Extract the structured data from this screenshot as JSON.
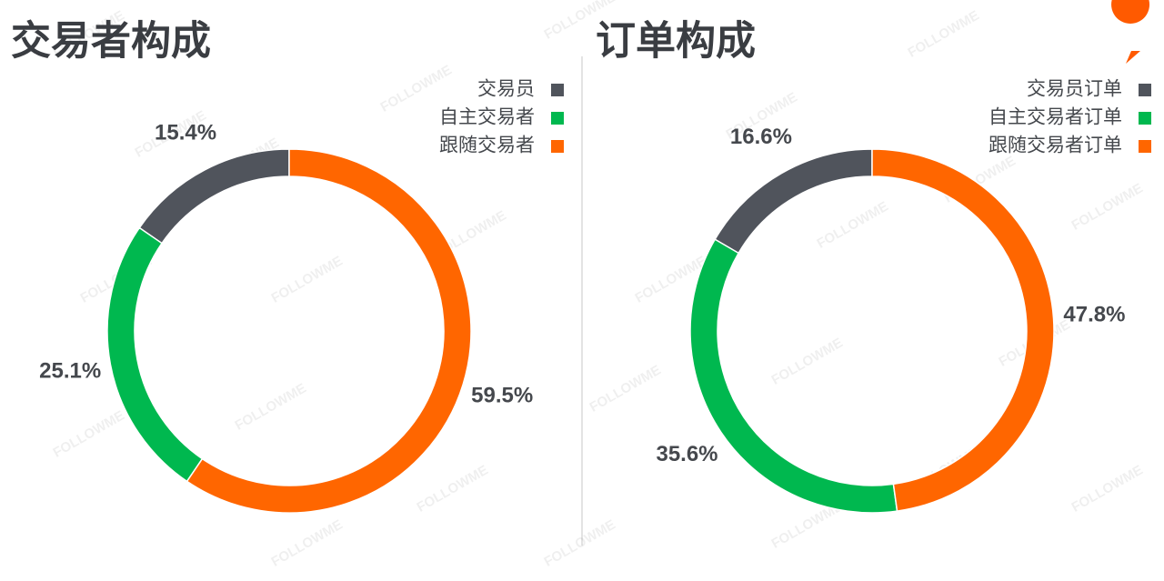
{
  "chart_data": [
    {
      "type": "pie",
      "donut": true,
      "direction": "counterclockwise",
      "legend": "top-right",
      "title": "交易者构成",
      "categories": [
        "交易员",
        "自主交易者",
        "跟随交易者"
      ],
      "values": [
        15.4,
        25.1,
        59.5
      ],
      "value_labels": [
        "15.4%",
        "25.1%",
        "59.5%"
      ],
      "colors": [
        "#50545c",
        "#00b84f",
        "#ff6600"
      ]
    },
    {
      "type": "pie",
      "donut": true,
      "direction": "counterclockwise",
      "legend": "top-right",
      "title": "订单构成",
      "categories": [
        "交易员订单",
        "自主交易者订单",
        "跟随交易者订单"
      ],
      "values": [
        16.6,
        35.6,
        47.8
      ],
      "value_labels": [
        "16.6%",
        "35.6%",
        "47.8%"
      ],
      "colors": [
        "#50545c",
        "#00b84f",
        "#ff6600"
      ]
    }
  ],
  "watermark": "FOLLOWME"
}
